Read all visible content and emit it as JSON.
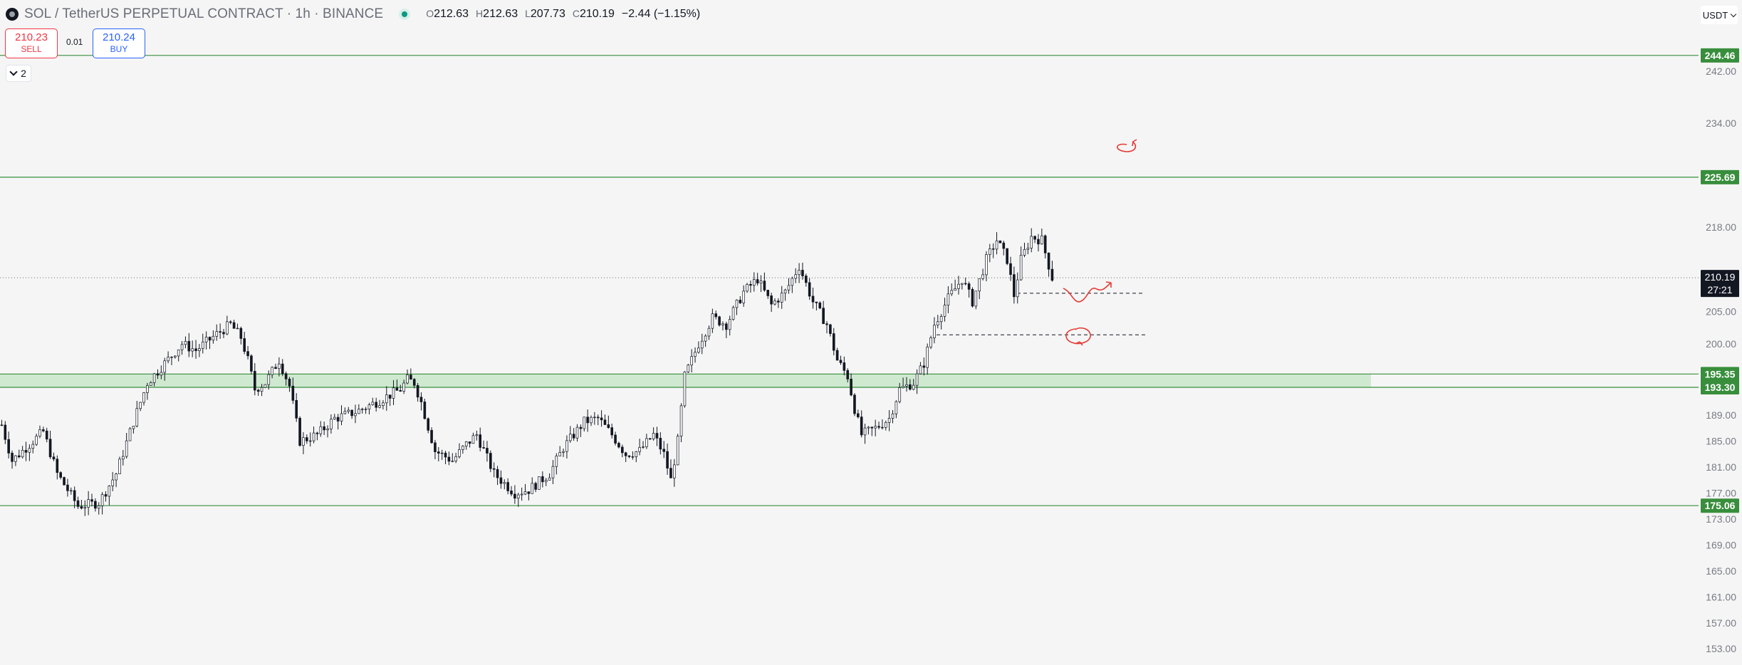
{
  "header": {
    "title": "SOL / TetherUS PERPETUAL CONTRACT · 1h · BINANCE",
    "logo_icon": "solana-logo-icon",
    "open_label": "O",
    "open": "212.63",
    "high_label": "H",
    "high": "212.63",
    "low_label": "L",
    "low": "207.73",
    "close_label": "C",
    "close": "210.19",
    "change": "−2.44 (−1.15%)"
  },
  "trade": {
    "sell_price": "210.23",
    "sell_label": "SELL",
    "buy_price": "210.24",
    "buy_label": "BUY",
    "spread": "0.01",
    "sell_color": "#f23645",
    "buy_color": "#2962ff"
  },
  "indicator_counter": "2",
  "currency": "USDT",
  "chart_data": {
    "type": "candlestick",
    "symbol": "SOL / TetherUS PERPETUAL CONTRACT",
    "interval": "1h",
    "exchange": "BINANCE",
    "ylim": [
      150.5,
      253.0
    ],
    "y_ticks": [
      "242.00",
      "234.00",
      "218.00",
      "205.00",
      "200.00",
      "189.00",
      "185.00",
      "181.00",
      "177.00",
      "173.00",
      "169.00",
      "165.00",
      "161.00",
      "157.00",
      "153.00"
    ],
    "y_tick_values": [
      242,
      234,
      218,
      205,
      200,
      189,
      185,
      181,
      177,
      173,
      169,
      165,
      161,
      157,
      153
    ],
    "levels": [
      {
        "label": "244.46",
        "value": 244.46
      },
      {
        "label": "225.69",
        "value": 225.69
      },
      {
        "label": "195.35",
        "value": 195.35
      },
      {
        "label": "193.30",
        "value": 193.3
      },
      {
        "label": "175.06",
        "value": 175.06
      }
    ],
    "level_color": "#388e3c",
    "zone": {
      "from": 193.3,
      "to": 195.35,
      "color": "#c8e6c9"
    },
    "last_price": {
      "label": "210.19",
      "countdown": "27:21",
      "value": 210.19
    },
    "dashed_levels": [
      207.8,
      201.4
    ],
    "price_path": [
      [
        0,
        187.5
      ],
      [
        3,
        182
      ],
      [
        8,
        184.5
      ],
      [
        12,
        186.5
      ],
      [
        16,
        180
      ],
      [
        22,
        175
      ],
      [
        28,
        175.5
      ],
      [
        33,
        180
      ],
      [
        38,
        188
      ],
      [
        42,
        194
      ],
      [
        47,
        197
      ],
      [
        52,
        200
      ],
      [
        56,
        199
      ],
      [
        62,
        201.5
      ],
      [
        66,
        203
      ],
      [
        69,
        201
      ],
      [
        71,
        197.5
      ],
      [
        73,
        193
      ],
      [
        76,
        194
      ],
      [
        80,
        197.5
      ],
      [
        83,
        193.5
      ],
      [
        86,
        185
      ],
      [
        91,
        186
      ],
      [
        96,
        188.5
      ],
      [
        102,
        189.5
      ],
      [
        108,
        191
      ],
      [
        115,
        193
      ],
      [
        117,
        194.5
      ],
      [
        119,
        194
      ],
      [
        121,
        191
      ],
      [
        125,
        183.5
      ],
      [
        130,
        182
      ],
      [
        134,
        184.5
      ],
      [
        137,
        186
      ],
      [
        142,
        180
      ],
      [
        148,
        177
      ],
      [
        152,
        177.5
      ],
      [
        158,
        180
      ],
      [
        162,
        184
      ],
      [
        168,
        188
      ],
      [
        172,
        188.5
      ],
      [
        176,
        186
      ],
      [
        180,
        183
      ],
      [
        184,
        183.5
      ],
      [
        188,
        186
      ],
      [
        191,
        183
      ],
      [
        193,
        179
      ],
      [
        195,
        185
      ],
      [
        197,
        195
      ],
      [
        201,
        200
      ],
      [
        205,
        204
      ],
      [
        209,
        203
      ],
      [
        214,
        208
      ],
      [
        218,
        210
      ],
      [
        222,
        206
      ],
      [
        226,
        208
      ],
      [
        230,
        212
      ],
      [
        234,
        206.5
      ],
      [
        238,
        203
      ],
      [
        241,
        197.5
      ],
      [
        244,
        195
      ],
      [
        246,
        190
      ],
      [
        248,
        186
      ],
      [
        252,
        187
      ],
      [
        256,
        188.5
      ],
      [
        259,
        193
      ],
      [
        263,
        194
      ],
      [
        266,
        197
      ],
      [
        269,
        203
      ],
      [
        273,
        207
      ],
      [
        277,
        210
      ],
      [
        280,
        206.5
      ],
      [
        284,
        213
      ],
      [
        287,
        216
      ],
      [
        290,
        213
      ],
      [
        292,
        207.5
      ],
      [
        294,
        213
      ],
      [
        297,
        216.5
      ],
      [
        300,
        216
      ],
      [
        303,
        210.2
      ]
    ],
    "annotations": [
      "arrow-loop",
      "wave-arrow",
      "loop-arrow"
    ]
  }
}
